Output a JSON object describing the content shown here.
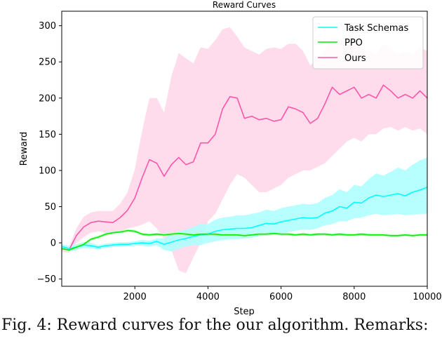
{
  "caption": "Fig. 4: Reward curves for the our algorithm. Remarks:",
  "chart_data": {
    "type": "line",
    "title": "Reward Curves",
    "xlabel": "Step",
    "ylabel": "Reward",
    "xlim": [
      0,
      10000
    ],
    "ylim": [
      -60,
      320
    ],
    "xticks": [
      2000,
      4000,
      6000,
      8000,
      10000
    ],
    "yticks": [
      -50,
      0,
      50,
      100,
      150,
      200,
      250,
      300
    ],
    "grid": false,
    "legend_position": "top-right",
    "series": [
      {
        "name": "Task Schemas",
        "color": "#00ffff",
        "band_color": "#aaffff",
        "x": [
          0,
          200,
          400,
          600,
          800,
          1000,
          1200,
          1400,
          1600,
          1800,
          2000,
          2200,
          2400,
          2600,
          2800,
          3000,
          3200,
          3400,
          3600,
          3800,
          4000,
          4200,
          4400,
          4600,
          4800,
          5000,
          5200,
          5400,
          5600,
          5800,
          6000,
          6200,
          6400,
          6600,
          6800,
          7000,
          7200,
          7400,
          7600,
          7800,
          8000,
          8200,
          8400,
          8600,
          8800,
          9000,
          9200,
          9400,
          9600,
          9800,
          10000
        ],
        "y": [
          -5,
          -8,
          -6,
          -3,
          -4,
          -6,
          -4,
          -3,
          -2,
          -2,
          -1,
          0,
          -1,
          2,
          -2,
          1,
          4,
          6,
          9,
          11,
          12,
          16,
          18,
          19,
          20,
          20,
          21,
          24,
          27,
          26,
          29,
          31,
          33,
          35,
          34,
          35,
          41,
          44,
          50,
          48,
          56,
          55,
          62,
          66,
          64,
          66,
          68,
          65,
          70,
          73,
          77
        ],
        "lower": [
          -8,
          -12,
          -10,
          -7,
          -8,
          -9,
          -7,
          -6,
          -5,
          -5,
          -4,
          -4,
          -5,
          -3,
          -10,
          -12,
          -8,
          -5,
          -3,
          -3,
          0,
          2,
          4,
          5,
          5,
          6,
          7,
          9,
          11,
          11,
          13,
          15,
          17,
          18,
          18,
          20,
          24,
          26,
          30,
          30,
          34,
          35,
          38,
          40,
          38,
          39,
          40,
          38,
          39,
          40,
          40
        ],
        "upper": [
          -2,
          -4,
          -2,
          1,
          0,
          -3,
          -1,
          0,
          1,
          1,
          2,
          4,
          3,
          6,
          6,
          12,
          16,
          18,
          22,
          26,
          26,
          32,
          35,
          36,
          38,
          38,
          40,
          42,
          46,
          44,
          48,
          50,
          52,
          54,
          53,
          55,
          62,
          66,
          74,
          70,
          80,
          78,
          88,
          96,
          93,
          98,
          104,
          100,
          108,
          114,
          118
        ]
      },
      {
        "name": "PPO",
        "color": "#00ee00",
        "band_color": "#bbffbb",
        "x": [
          0,
          200,
          400,
          600,
          800,
          1000,
          1200,
          1400,
          1600,
          1800,
          2000,
          2200,
          2400,
          2600,
          2800,
          3000,
          3200,
          3400,
          3600,
          3800,
          4000,
          4200,
          4400,
          4600,
          4800,
          5000,
          5200,
          5400,
          5600,
          5800,
          6000,
          6200,
          6400,
          6600,
          6800,
          7000,
          7200,
          7400,
          7600,
          7800,
          8000,
          8200,
          8400,
          8600,
          8800,
          9000,
          9200,
          9400,
          9600,
          9800,
          10000
        ],
        "y": [
          -8,
          -10,
          -6,
          -2,
          5,
          8,
          12,
          14,
          15,
          17,
          16,
          12,
          11,
          12,
          11,
          12,
          13,
          12,
          11,
          12,
          12,
          12,
          11,
          11,
          11,
          10,
          11,
          12,
          12,
          13,
          12,
          12,
          11,
          12,
          11,
          12,
          12,
          11,
          12,
          11,
          11,
          12,
          11,
          11,
          11,
          10,
          10,
          11,
          10,
          11,
          11
        ],
        "lower": [
          -10,
          -12,
          -8,
          -4,
          3,
          6,
          10,
          12,
          13,
          15,
          14,
          10,
          9,
          10,
          9,
          10,
          11,
          10,
          9,
          10,
          10,
          10,
          9,
          9,
          9,
          8,
          9,
          10,
          10,
          11,
          10,
          10,
          9,
          10,
          9,
          10,
          10,
          9,
          10,
          9,
          9,
          10,
          9,
          9,
          9,
          8,
          8,
          9,
          8,
          9,
          9
        ],
        "upper": [
          -6,
          -8,
          -4,
          0,
          7,
          10,
          14,
          16,
          17,
          19,
          18,
          14,
          13,
          14,
          13,
          14,
          15,
          14,
          13,
          14,
          14,
          14,
          13,
          13,
          13,
          12,
          13,
          14,
          14,
          15,
          14,
          14,
          13,
          14,
          13,
          14,
          14,
          13,
          14,
          13,
          13,
          14,
          13,
          13,
          13,
          12,
          12,
          13,
          12,
          13,
          13
        ]
      },
      {
        "name": "Ours",
        "color": "#ff55aa",
        "band_color": "#ffd6e8",
        "x": [
          0,
          200,
          400,
          600,
          800,
          1000,
          1200,
          1400,
          1600,
          1800,
          2000,
          2200,
          2400,
          2600,
          2800,
          3000,
          3200,
          3400,
          3600,
          3800,
          4000,
          4200,
          4400,
          4600,
          4800,
          5000,
          5200,
          5400,
          5600,
          5800,
          6000,
          6200,
          6400,
          6600,
          6800,
          7000,
          7200,
          7400,
          7600,
          7800,
          8000,
          8200,
          8400,
          8600,
          8800,
          9000,
          9200,
          9400,
          9600,
          9800,
          10000
        ],
        "y": [
          -8,
          -10,
          10,
          22,
          28,
          30,
          29,
          28,
          35,
          45,
          62,
          90,
          115,
          110,
          92,
          108,
          118,
          108,
          112,
          138,
          138,
          150,
          185,
          202,
          200,
          172,
          175,
          170,
          172,
          168,
          170,
          188,
          185,
          180,
          165,
          172,
          192,
          215,
          205,
          210,
          215,
          200,
          205,
          200,
          218,
          210,
          200,
          205,
          200,
          210,
          200
        ],
        "lower": [
          -12,
          -14,
          0,
          8,
          14,
          16,
          14,
          12,
          16,
          20,
          22,
          25,
          30,
          20,
          5,
          -10,
          -38,
          -42,
          -20,
          0,
          30,
          40,
          60,
          80,
          95,
          90,
          80,
          70,
          70,
          75,
          80,
          90,
          95,
          100,
          100,
          105,
          110,
          120,
          130,
          140,
          145,
          140,
          150,
          150,
          158,
          160,
          155,
          160,
          155,
          158,
          150
        ],
        "upper": [
          -4,
          -6,
          20,
          36,
          42,
          44,
          44,
          44,
          54,
          70,
          102,
          155,
          200,
          200,
          180,
          230,
          262,
          255,
          248,
          270,
          268,
          280,
          295,
          298,
          285,
          270,
          265,
          260,
          268,
          270,
          268,
          275,
          275,
          265,
          245,
          255,
          265,
          285,
          280,
          270,
          280,
          270,
          265,
          260,
          275,
          268,
          260,
          265,
          260,
          270,
          265
        ]
      }
    ]
  }
}
